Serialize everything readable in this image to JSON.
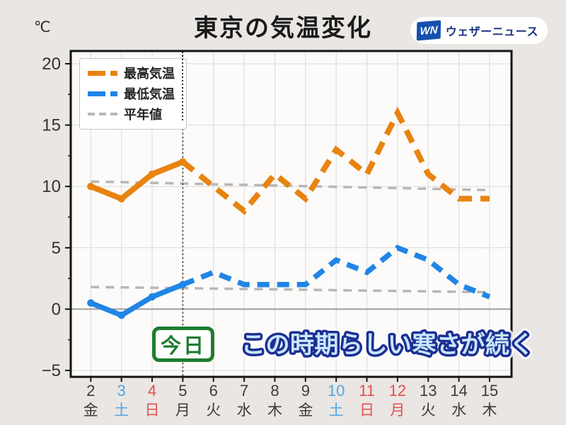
{
  "header": {
    "title": "東京の気温変化",
    "logo_mark": "WN",
    "logo_text": "ウェザーニュース"
  },
  "chart": {
    "unit_label": "℃",
    "today_label": "今日",
    "caption": "この時期らしい寒さが続く",
    "legend": [
      {
        "label": "最高気温",
        "color": "#e8830f"
      },
      {
        "label": "最低気温",
        "color": "#2085e6"
      },
      {
        "label": "平年値",
        "color": "#b9b7b5"
      }
    ]
  },
  "chart_data": {
    "type": "line",
    "title": "東京の気温変化",
    "ylabel": "℃",
    "ylim": [
      -5,
      20
    ],
    "yticks": [
      20,
      15,
      10,
      5,
      0,
      -5
    ],
    "ytick_labels": [
      "20",
      "15",
      "10",
      "5",
      "0",
      "−5"
    ],
    "grid": true,
    "legend_position": "top-left",
    "today_day": "5",
    "forecast_dashed_from_day": "5",
    "x_days": [
      {
        "day": "2",
        "weekday": "金",
        "type": "wd"
      },
      {
        "day": "3",
        "weekday": "土",
        "type": "sat"
      },
      {
        "day": "4",
        "weekday": "日",
        "type": "sun"
      },
      {
        "day": "5",
        "weekday": "月",
        "type": "wd"
      },
      {
        "day": "6",
        "weekday": "火",
        "type": "wd"
      },
      {
        "day": "7",
        "weekday": "水",
        "type": "wd"
      },
      {
        "day": "8",
        "weekday": "木",
        "type": "wd"
      },
      {
        "day": "9",
        "weekday": "金",
        "type": "wd"
      },
      {
        "day": "10",
        "weekday": "土",
        "type": "sat"
      },
      {
        "day": "11",
        "weekday": "日",
        "type": "sun"
      },
      {
        "day": "12",
        "weekday": "月",
        "type": "sun"
      },
      {
        "day": "13",
        "weekday": "火",
        "type": "wd"
      },
      {
        "day": "14",
        "weekday": "水",
        "type": "wd"
      },
      {
        "day": "15",
        "weekday": "木",
        "type": "wd"
      }
    ],
    "weekday_colors": {
      "wd": "#3c3c3c",
      "sat": "#4fa5e8",
      "sun": "#e25050"
    },
    "series": [
      {
        "name": "最高気温",
        "color": "#e8830f",
        "style": "solid-then-dashed",
        "values": [
          10,
          9,
          11,
          12,
          10,
          8,
          11,
          9,
          13,
          11,
          16,
          11,
          9,
          9
        ]
      },
      {
        "name": "最低気温",
        "color": "#2085e6",
        "style": "solid-then-dashed",
        "values": [
          0.5,
          -0.5,
          1,
          2,
          3,
          2,
          2,
          2,
          4,
          3,
          5,
          4,
          2,
          1
        ]
      },
      {
        "name": "平年値（最高）",
        "color": "#b9b7b5",
        "style": "dashed",
        "values": [
          10.4,
          10.35,
          10.29,
          10.24,
          10.18,
          10.13,
          10.08,
          10.02,
          9.97,
          9.91,
          9.86,
          9.81,
          9.75,
          9.7
        ]
      },
      {
        "name": "平年値（最低）",
        "color": "#b9b7b5",
        "style": "dashed",
        "values": [
          1.8,
          1.77,
          1.74,
          1.71,
          1.67,
          1.64,
          1.61,
          1.58,
          1.54,
          1.51,
          1.48,
          1.45,
          1.41,
          1.38
        ]
      }
    ]
  }
}
